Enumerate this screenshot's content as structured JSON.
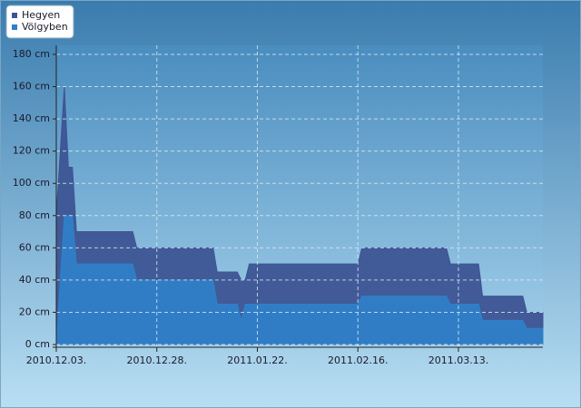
{
  "chart_data": {
    "type": "area",
    "x": [
      "2010-12-03",
      "2010-12-04",
      "2010-12-05",
      "2010-12-06",
      "2010-12-07",
      "2010-12-08",
      "2010-12-22",
      "2010-12-23",
      "2011-01-11",
      "2011-01-12",
      "2011-01-17",
      "2011-01-18",
      "2011-01-19",
      "2011-01-20",
      "2011-02-16",
      "2011-02-17",
      "2011-03-10",
      "2011-03-11",
      "2011-03-18",
      "2011-03-19",
      "2011-03-29",
      "2011-03-30",
      "2011-04-03"
    ],
    "series": [
      {
        "name": "Hegyen",
        "color": "#3d5494",
        "values": [
          80,
          120,
          160,
          110,
          110,
          70,
          70,
          60,
          60,
          45,
          45,
          40,
          40,
          50,
          50,
          60,
          60,
          50,
          50,
          30,
          30,
          20,
          20
        ]
      },
      {
        "name": "Völgyben",
        "color": "#2f80c8",
        "values": [
          0,
          40,
          80,
          80,
          80,
          50,
          50,
          40,
          40,
          25,
          25,
          15,
          25,
          25,
          25,
          30,
          30,
          25,
          25,
          15,
          15,
          10,
          10
        ]
      }
    ],
    "xlim": [
      "2010-12-03",
      "2011-04-03"
    ],
    "xticks": [
      {
        "value": "2010-12-03",
        "label": "2010.12.03."
      },
      {
        "value": "2010-12-28",
        "label": "2010.12.28."
      },
      {
        "value": "2011-01-22",
        "label": "2011.01.22."
      },
      {
        "value": "2011-02-16",
        "label": "2011.02.16."
      },
      {
        "value": "2011-03-13",
        "label": "2011.03.13."
      }
    ],
    "ylim": [
      0,
      180
    ],
    "yticks": [
      {
        "value": 0,
        "label": "0 cm"
      },
      {
        "value": 20,
        "label": "20 cm"
      },
      {
        "value": 40,
        "label": "40 cm"
      },
      {
        "value": 60,
        "label": "60 cm"
      },
      {
        "value": 80,
        "label": "80 cm"
      },
      {
        "value": 100,
        "label": "100 cm"
      },
      {
        "value": 120,
        "label": "120 cm"
      },
      {
        "value": 140,
        "label": "140 cm"
      },
      {
        "value": 160,
        "label": "160 cm"
      },
      {
        "value": 180,
        "label": "180 cm"
      }
    ],
    "grid": true,
    "legend": "top-left"
  }
}
